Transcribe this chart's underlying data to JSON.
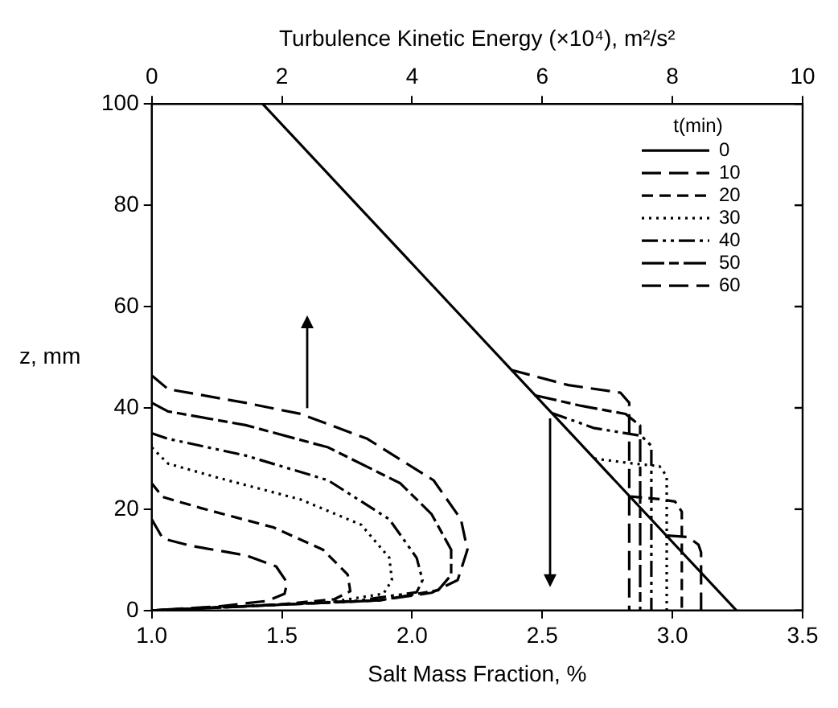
{
  "chart_data": {
    "type": "line",
    "xlabel": "Salt Mass Fraction, %",
    "x2label": "Turbulence Kinetic Energy (×10⁴), m²/s²",
    "ylabel": "z, mm",
    "legend_title": "t(min)",
    "legend": "top right",
    "grid": false,
    "xlim": [
      1,
      3.5
    ],
    "xticks": [
      {
        "value": 1,
        "label": "1.0"
      },
      {
        "value": 1.5,
        "label": "1.5"
      },
      {
        "value": 2,
        "label": "2.0"
      },
      {
        "value": 2.5,
        "label": "2.5"
      },
      {
        "value": 3,
        "label": "3.0"
      },
      {
        "value": 3.5,
        "label": "3.5"
      }
    ],
    "x2lim": [
      0,
      10
    ],
    "x2ticks": [
      0,
      2,
      4,
      6,
      8,
      10
    ],
    "ylim": [
      0,
      100
    ],
    "yticks": [
      0,
      20,
      40,
      60,
      80,
      100
    ],
    "series": [
      {
        "name": "0",
        "color": "#000000",
        "line_style": "solid",
        "x": [
          1.426,
          3.246
        ],
        "values": [
          100,
          0
        ]
      },
      {
        "name": "10",
        "color": "#000000",
        "line_style": "dashed",
        "x": [
          2.98,
          3.06,
          3.1,
          3.11,
          3.11
        ],
        "values": [
          14.8,
          14.5,
          13,
          11.5,
          0
        ]
      },
      {
        "name": "20",
        "color": "#000000",
        "line_style": "dashed",
        "x": [
          2.84,
          2.95,
          3.01,
          3.036,
          3.036
        ],
        "values": [
          22.5,
          22,
          21.5,
          19.5,
          0
        ]
      },
      {
        "name": "30",
        "color": "#000000",
        "line_style": "dotted",
        "x": [
          2.7,
          2.85,
          2.95,
          2.978,
          2.978
        ],
        "values": [
          30,
          29,
          28.5,
          26.5,
          0
        ]
      },
      {
        "name": "40",
        "color": "#000000",
        "line_style": "dashed",
        "x": [
          2.536,
          2.7,
          2.88,
          2.919,
          2.919
        ],
        "values": [
          39,
          36,
          34.5,
          32.5,
          0
        ]
      },
      {
        "name": "50",
        "color": "#000000",
        "line_style": "dashed",
        "x": [
          2.47,
          2.65,
          2.82,
          2.876,
          2.876
        ],
        "values": [
          42.5,
          40.4,
          38.8,
          36.5,
          0
        ]
      },
      {
        "name": "60",
        "color": "#000000",
        "line_style": "dashed",
        "x": [
          2.38,
          2.6,
          2.8,
          2.834,
          2.834
        ],
        "values": [
          47.5,
          44.5,
          43,
          41,
          0
        ]
      },
      {
        "color": "#000000",
        "line_style": "dashed",
        "axis": "x2",
        "x": [
          0,
          0.17,
          0.59,
          1.44,
          1.91,
          2.08,
          2.04,
          1.78,
          1.02,
          0
        ],
        "values": [
          18,
          14.2,
          12.8,
          10.9,
          8.7,
          5.5,
          3.3,
          1.9,
          0.8,
          0
        ]
      },
      {
        "color": "#000000",
        "line_style": "dashed",
        "axis": "x2",
        "x": [
          0,
          0.17,
          0.76,
          1.87,
          2.63,
          3.01,
          3.05,
          2.8,
          1.87,
          0
        ],
        "values": [
          25.1,
          22.4,
          20.2,
          16.4,
          12,
          7.1,
          3.8,
          2.2,
          1.1,
          0
        ]
      },
      {
        "color": "#000000",
        "line_style": "dotted",
        "axis": "x2",
        "x": [
          0,
          0.25,
          1.02,
          2.29,
          3.22,
          3.65,
          3.69,
          3.56,
          2.71,
          0
        ],
        "values": [
          32.2,
          29,
          26.2,
          21.9,
          16.9,
          10.4,
          6,
          3.3,
          1.6,
          0
        ]
      },
      {
        "color": "#000000",
        "line_style": "dashed",
        "axis": "x2",
        "x": [
          0,
          0.25,
          1.44,
          2.71,
          3.65,
          4.07,
          4.16,
          4.07,
          3.14,
          0
        ],
        "values": [
          35,
          33.9,
          30.6,
          25.7,
          18,
          10.4,
          6,
          3.6,
          1.9,
          0
        ]
      },
      {
        "color": "#000000",
        "line_style": "dashed",
        "axis": "x2",
        "x": [
          0,
          0.25,
          1.44,
          2.71,
          3.82,
          4.3,
          4.6,
          4.6,
          4.4,
          3.5,
          0
        ],
        "values": [
          41,
          39.3,
          36.6,
          32.2,
          25.1,
          19,
          12,
          7,
          4,
          2,
          0
        ]
      },
      {
        "color": "#000000",
        "line_style": "dashed",
        "axis": "x2",
        "x": [
          0,
          0.25,
          1.44,
          2.29,
          3.31,
          4.33,
          4.75,
          4.85,
          4.7,
          4.3,
          3.5,
          0
        ],
        "values": [
          46.4,
          43.7,
          41,
          38.8,
          33.9,
          25.7,
          18,
          12,
          6,
          3.5,
          2,
          0
        ]
      }
    ]
  }
}
